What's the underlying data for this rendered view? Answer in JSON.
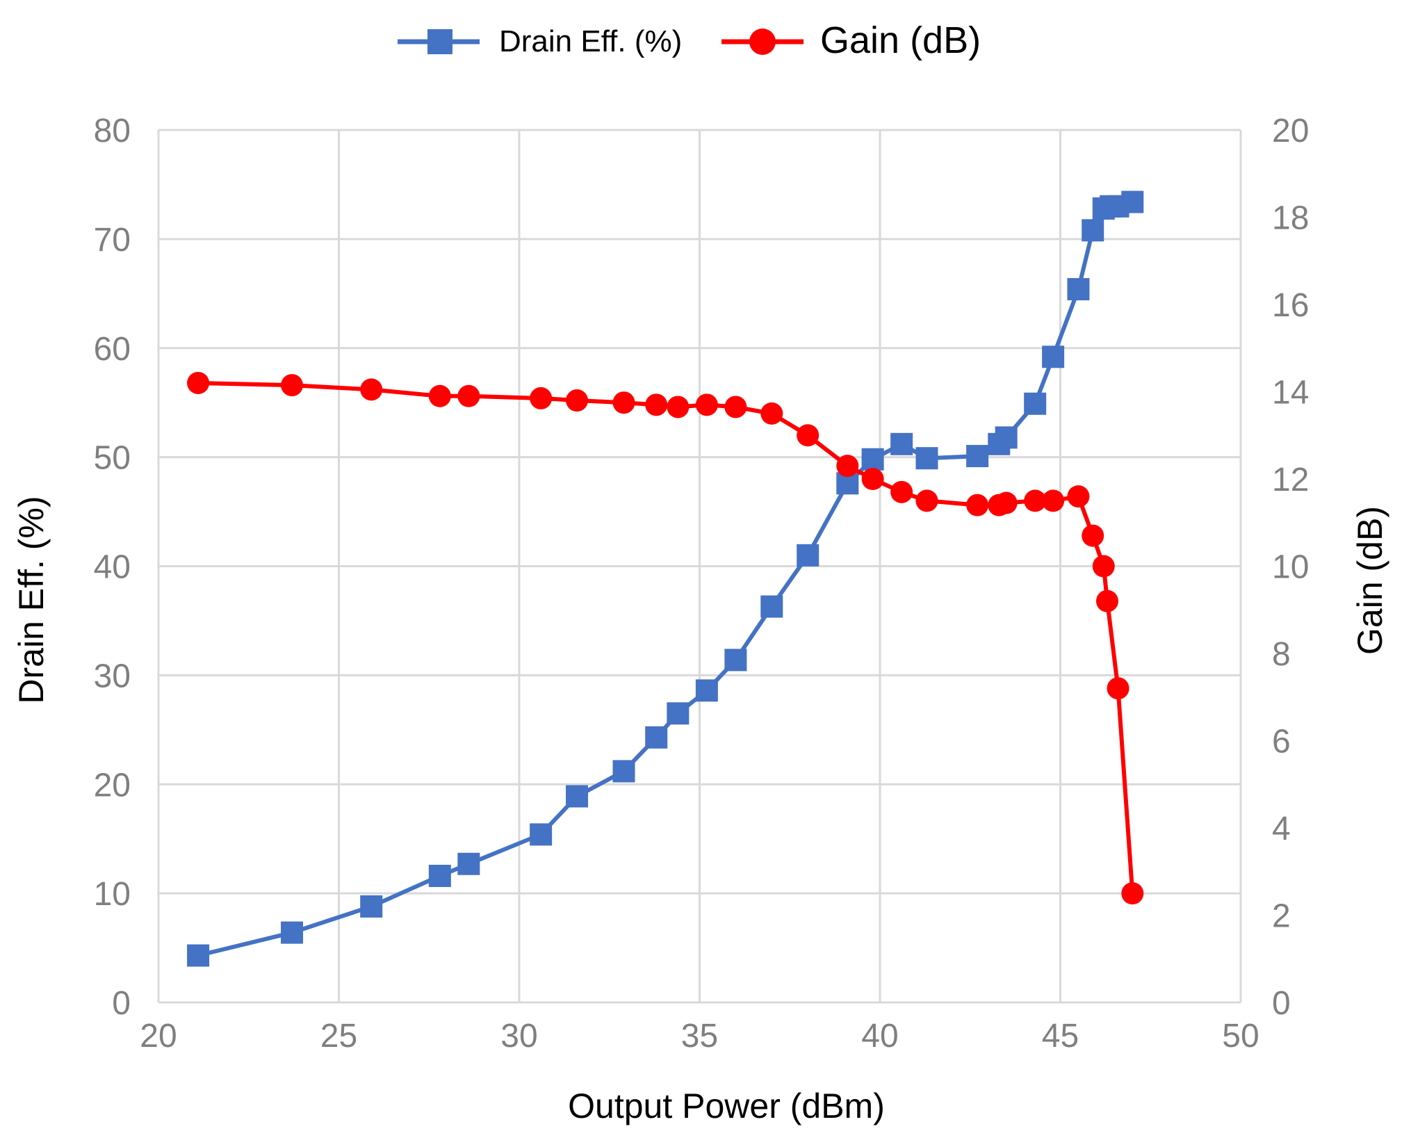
{
  "chart_data": {
    "type": "line",
    "title": "",
    "xlabel": "Output Power (dBm)",
    "ylabel_left": "Drain Eff. (%)",
    "ylabel_right": "Gain (dB)",
    "xlim": [
      20,
      50
    ],
    "ylim_left": [
      0,
      80
    ],
    "ylim_right": [
      0,
      20
    ],
    "x_ticks": [
      "20",
      "25",
      "30",
      "35",
      "40",
      "45",
      "50"
    ],
    "y_left_ticks": [
      "0",
      "10",
      "20",
      "30",
      "40",
      "50",
      "60",
      "70",
      "80"
    ],
    "y_right_ticks": [
      "0",
      "2",
      "4",
      "6",
      "8",
      "10",
      "12",
      "14",
      "16",
      "18",
      "20"
    ],
    "grid": true,
    "legend_position": "top-center",
    "series": [
      {
        "name": "Drain Eff. (%)",
        "axis": "left",
        "color": "#4472c4",
        "marker": "square",
        "x": [
          21.1,
          23.7,
          25.9,
          27.8,
          28.6,
          30.6,
          31.6,
          32.9,
          33.8,
          34.4,
          35.2,
          36.0,
          37.0,
          38.0,
          39.1,
          39.8,
          40.6,
          41.3,
          42.7,
          43.3,
          43.5,
          44.3,
          44.8,
          45.5,
          45.9,
          46.2,
          46.4,
          46.6,
          47.0
        ],
        "y": [
          4.3,
          6.4,
          8.8,
          11.6,
          12.7,
          15.4,
          18.9,
          21.2,
          24.3,
          26.5,
          28.6,
          31.4,
          36.3,
          41.0,
          47.6,
          49.8,
          51.2,
          49.9,
          50.1,
          51.2,
          51.8,
          54.9,
          59.2,
          65.4,
          70.8,
          72.8,
          73.0,
          73.0,
          73.4
        ]
      },
      {
        "name": "Gain (dB)",
        "axis": "right",
        "color": "#ff0000",
        "marker": "circle",
        "x": [
          21.1,
          23.7,
          25.9,
          27.8,
          28.6,
          30.6,
          31.6,
          32.9,
          33.8,
          34.4,
          35.2,
          36.0,
          37.0,
          38.0,
          39.1,
          39.8,
          40.6,
          41.3,
          42.7,
          43.3,
          43.5,
          44.3,
          44.8,
          45.5,
          45.9,
          46.2,
          46.3,
          46.6,
          47.0
        ],
        "y": [
          14.2,
          14.15,
          14.05,
          13.9,
          13.9,
          13.85,
          13.8,
          13.75,
          13.7,
          13.65,
          13.7,
          13.65,
          13.5,
          13.0,
          12.3,
          12.0,
          11.7,
          11.5,
          11.4,
          11.4,
          11.45,
          11.5,
          11.5,
          11.6,
          10.7,
          10.0,
          9.2,
          7.2,
          2.5
        ]
      }
    ]
  }
}
